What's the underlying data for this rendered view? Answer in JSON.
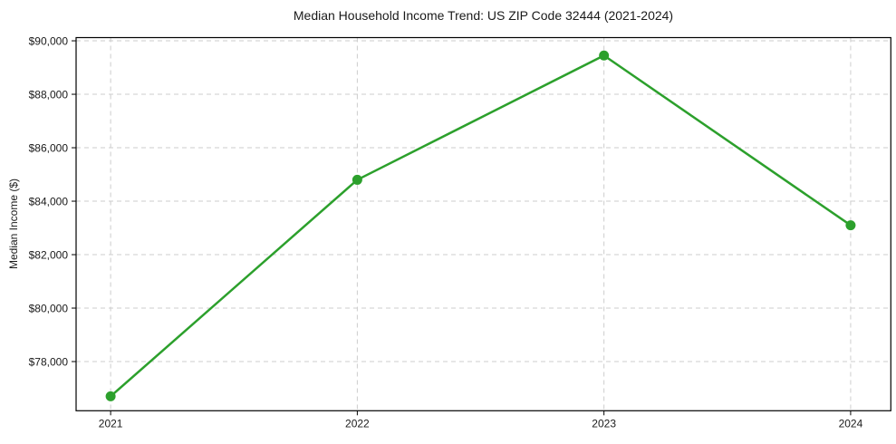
{
  "chart_data": {
    "type": "line",
    "title": "Median Household Income Trend: US ZIP Code 32444 (2021-2024)",
    "xlabel": "",
    "ylabel": "Median Income ($)",
    "x": [
      2021,
      2022,
      2023,
      2024
    ],
    "x_tick_labels": [
      "2021",
      "2022",
      "2023",
      "2024"
    ],
    "values": [
      76700,
      84800,
      89450,
      83100
    ],
    "y_ticks": [
      {
        "value": 78000,
        "label": "$78,000"
      },
      {
        "value": 80000,
        "label": "$80,000"
      },
      {
        "value": 82000,
        "label": "$82,000"
      },
      {
        "value": 84000,
        "label": "$84,000"
      },
      {
        "value": 86000,
        "label": "$86,000"
      },
      {
        "value": 88000,
        "label": "$88,000"
      },
      {
        "value": 90000,
        "label": "$90,000"
      }
    ],
    "xlim": [
      2020.86,
      2024.163
    ],
    "ylim": [
      76160,
      90120
    ],
    "grid": true,
    "grid_style": "dashed",
    "legend": "none",
    "marker": "circle",
    "line_color": "#2ca02c",
    "grid_color": "#cccccc",
    "axis_color": "#000000",
    "text_color": "#1a1a1a",
    "background": "#ffffff"
  }
}
